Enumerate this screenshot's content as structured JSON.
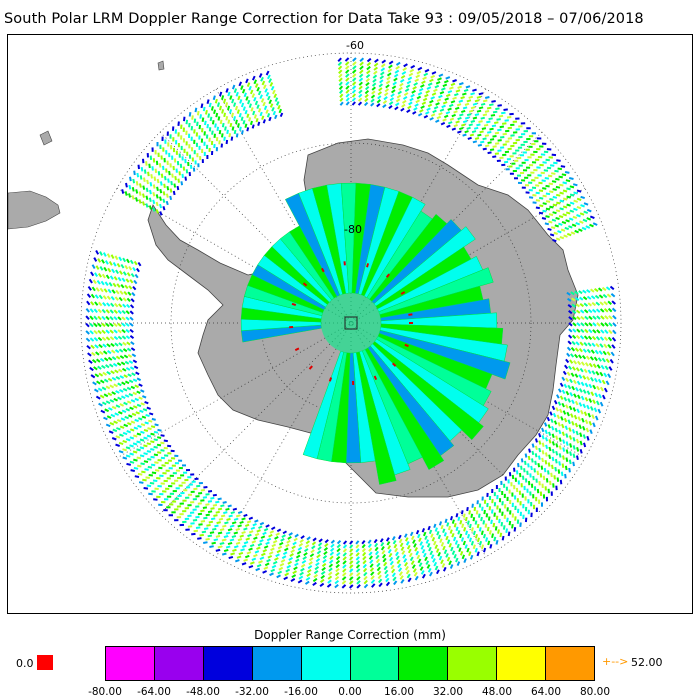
{
  "title": "South Polar LRM Doppler Range Correction for Data Take 93 : 09/05/2018 – 07/06/2018",
  "map": {
    "projection": "south-polar-stereographic",
    "lat_labels": [
      "-60",
      "-80"
    ],
    "ocean_color": "#ffffff",
    "land_color": "#aaaaaa",
    "graticule_style": "dotted"
  },
  "colorbar": {
    "title": "Doppler Range Correction (mm)",
    "ticks": [
      "-80.00",
      "-64.00",
      "-48.00",
      "-32.00",
      "-16.00",
      "0.00",
      "16.00",
      "32.00",
      "48.00",
      "64.00",
      "80.00"
    ],
    "colors": [
      "#ff00ff",
      "#9900ee",
      "#0000dd",
      "#0099ee",
      "#00ffee",
      "#00ff99",
      "#00ee00",
      "#99ff00",
      "#ffff00",
      "#ff9900"
    ],
    "nodata_label": "0.0",
    "nodata_color": "#ff0000",
    "overflow_arrow": "+-->",
    "overflow_color": "#ff9900",
    "overflow_value": "52.00"
  }
}
